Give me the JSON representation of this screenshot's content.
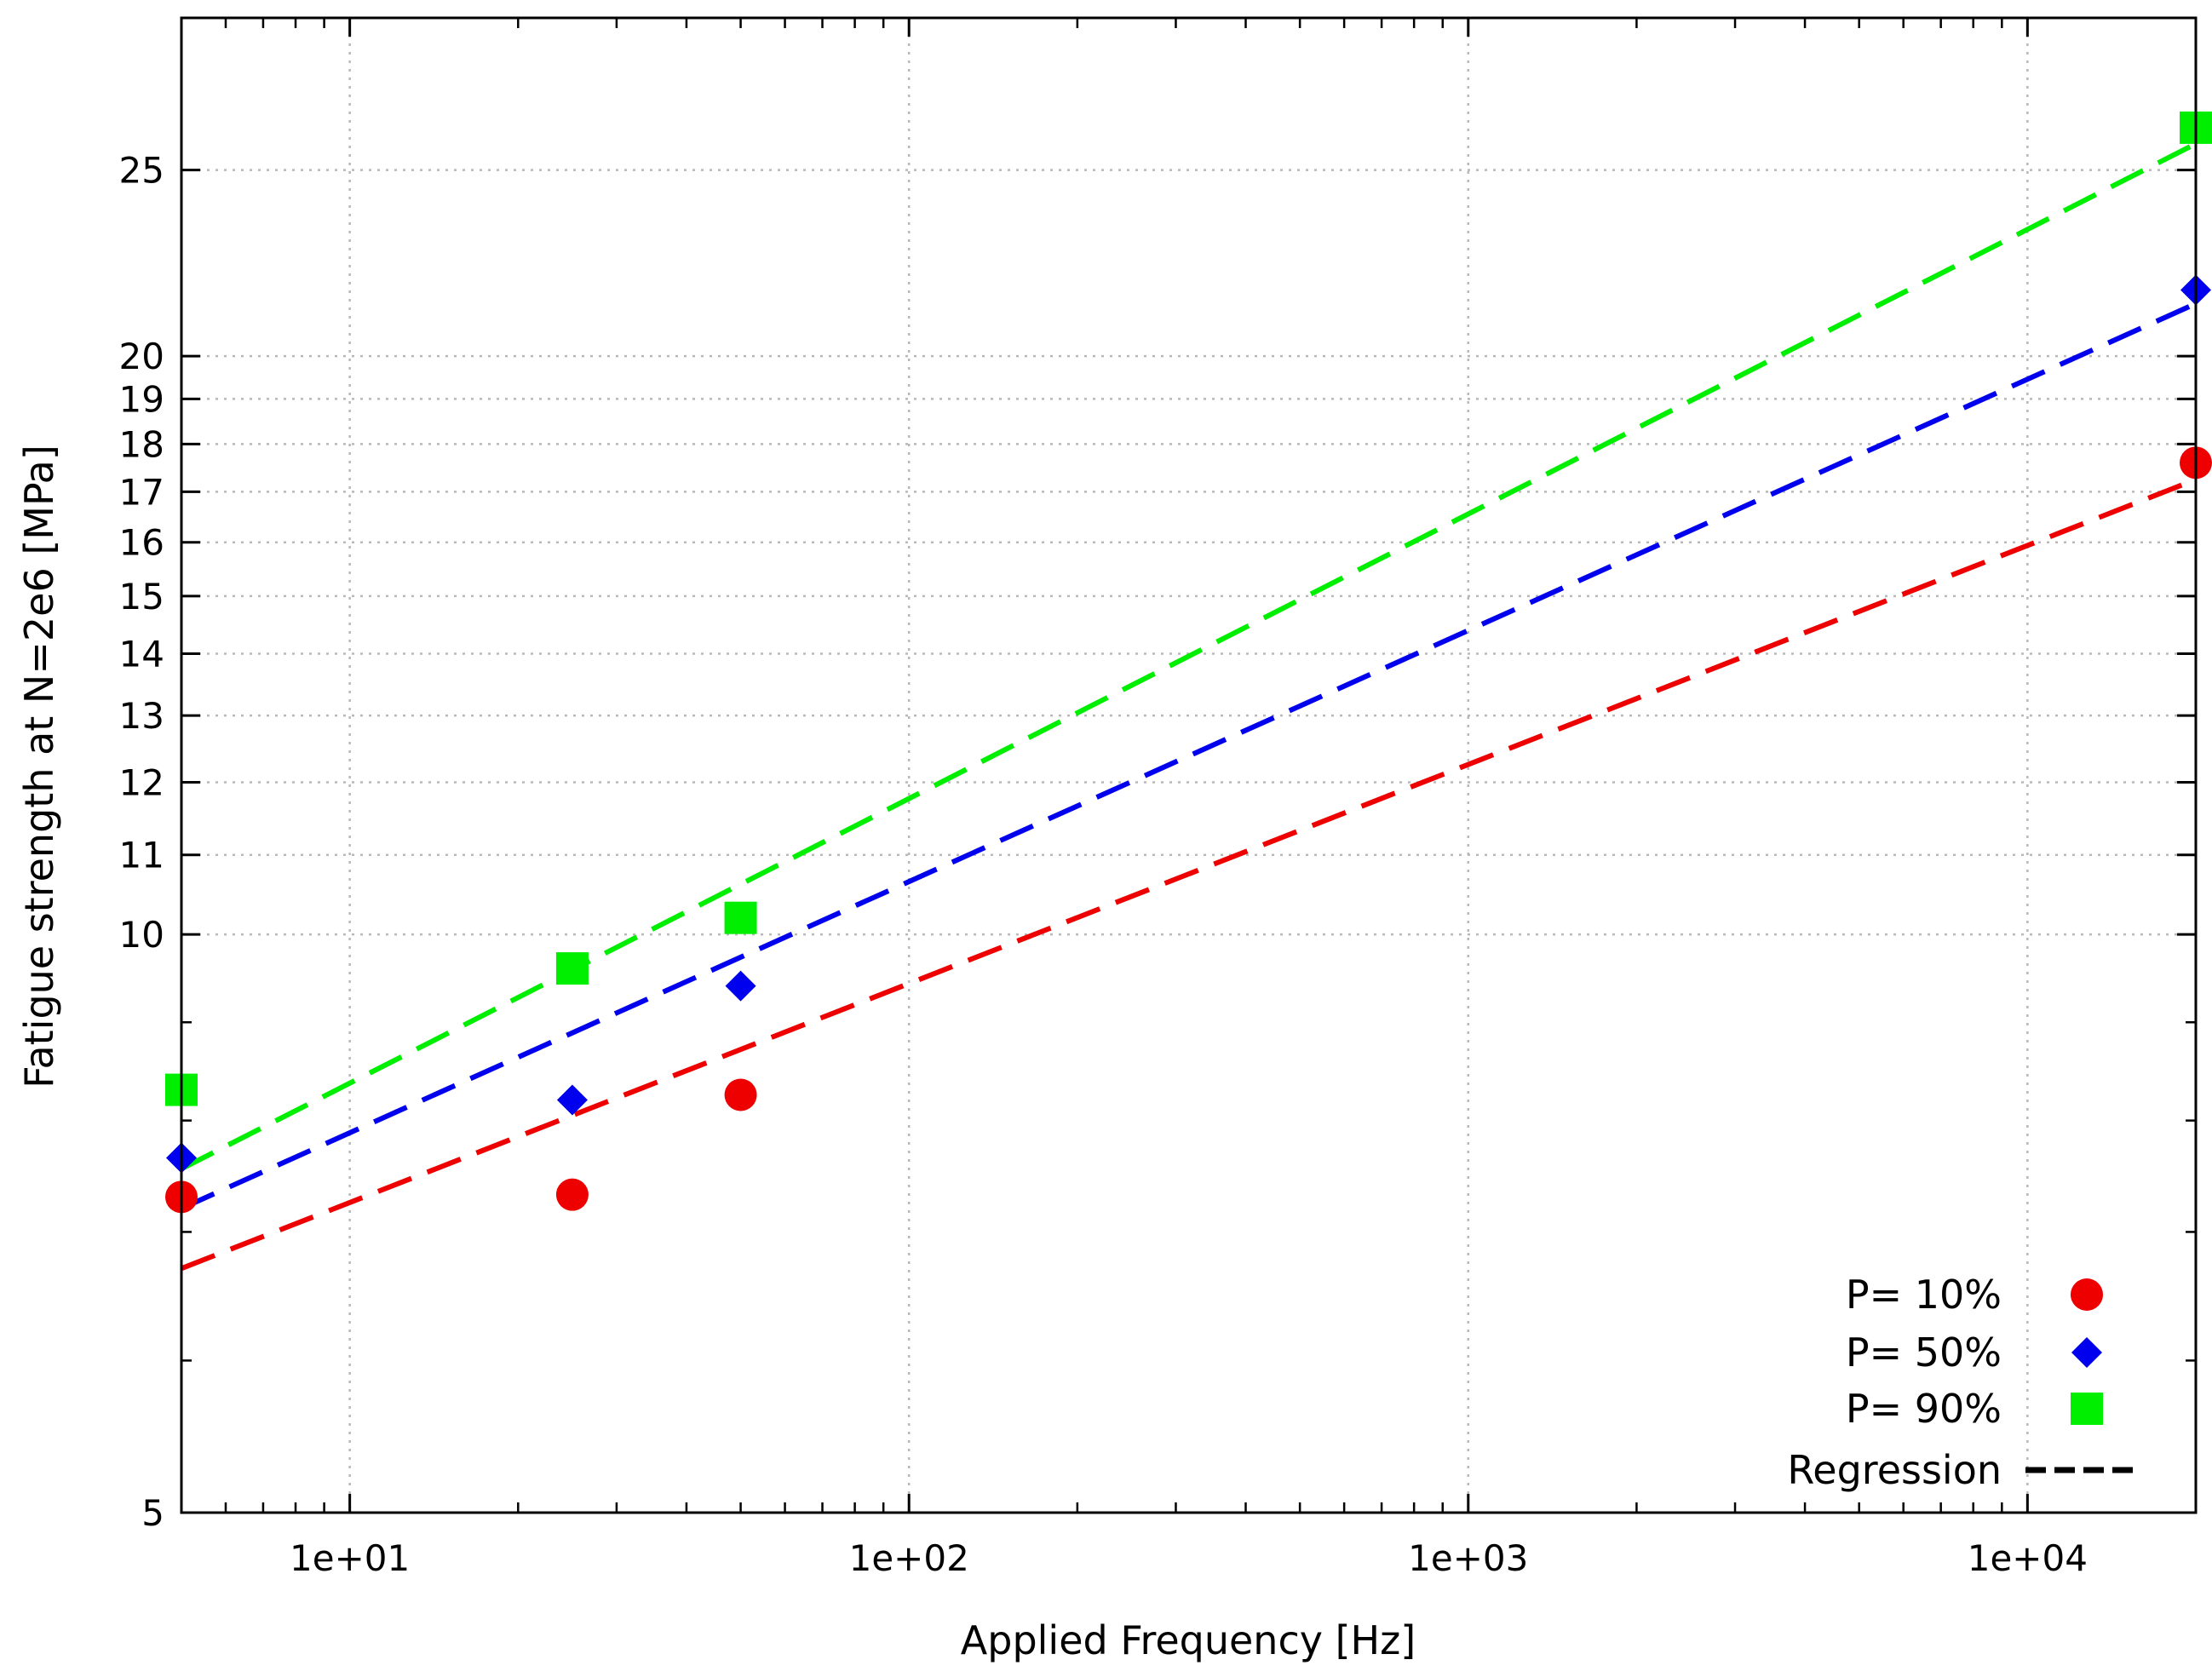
{
  "chart_data": {
    "type": "scatter",
    "xscale": "log",
    "yscale": "log",
    "xlabel": "Applied Frequency [Hz]",
    "ylabel": "Fatigue strength at N=2e6 [MPa]",
    "xlim": [
      5,
      20000
    ],
    "ylim": [
      5,
      30
    ],
    "grid": true,
    "legend_position": "bottom-right",
    "x_ticks": [
      {
        "value": 10,
        "label": "1e+01"
      },
      {
        "value": 100,
        "label": "1e+02"
      },
      {
        "value": 1000,
        "label": "1e+03"
      },
      {
        "value": 10000,
        "label": "1e+04"
      }
    ],
    "y_ticks": [
      {
        "value": 5,
        "label": "5"
      },
      {
        "value": 10,
        "label": "10"
      },
      {
        "value": 11,
        "label": "11"
      },
      {
        "value": 12,
        "label": "12"
      },
      {
        "value": 13,
        "label": "13"
      },
      {
        "value": 14,
        "label": "14"
      },
      {
        "value": 15,
        "label": "15"
      },
      {
        "value": 16,
        "label": "16"
      },
      {
        "value": 17,
        "label": "17"
      },
      {
        "value": 18,
        "label": "18"
      },
      {
        "value": 19,
        "label": "19"
      },
      {
        "value": 20,
        "label": "20"
      },
      {
        "value": 25,
        "label": "25"
      }
    ],
    "series": [
      {
        "name": "P= 10%",
        "color": "#ee0000",
        "marker": "circle",
        "points": [
          [
            5,
            7.3
          ],
          [
            25,
            7.32
          ],
          [
            50,
            8.25
          ],
          [
            20000,
            17.6
          ]
        ],
        "regression": [
          [
            5,
            6.7
          ],
          [
            20000,
            17.25
          ]
        ]
      },
      {
        "name": "P= 50%",
        "color": "#0000ee",
        "marker": "diamond",
        "points": [
          [
            5,
            7.65
          ],
          [
            25,
            8.2
          ],
          [
            50,
            9.4
          ],
          [
            20000,
            21.65
          ]
        ],
        "regression": [
          [
            5,
            7.2
          ],
          [
            20000,
            21.3
          ]
        ]
      },
      {
        "name": "P= 90%",
        "color": "#00ee00",
        "marker": "square",
        "points": [
          [
            5,
            8.3
          ],
          [
            25,
            9.6
          ],
          [
            50,
            10.2
          ],
          [
            20000,
            26.3
          ]
        ],
        "regression": [
          [
            5,
            7.55
          ],
          [
            20000,
            25.8
          ]
        ]
      }
    ],
    "regression_legend": {
      "name": "Regression",
      "color": "#000000",
      "style": "dashed"
    }
  }
}
